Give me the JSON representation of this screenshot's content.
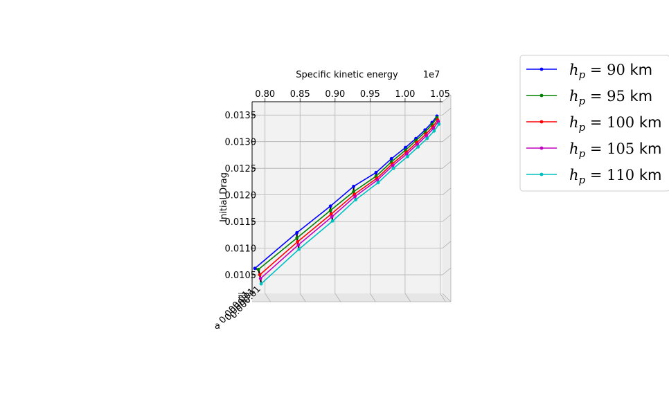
{
  "chart_data": {
    "type": "line",
    "projection": "3d",
    "xlabel": "Specific kinetic energy",
    "x_offset_label": "1e7",
    "x_ticks": [
      "0.80",
      "0.85",
      "0.90",
      "0.95",
      "1.00",
      "1.05"
    ],
    "x_tick_values": [
      0.8,
      0.85,
      0.9,
      0.95,
      1.0,
      1.05
    ],
    "xlim": [
      0.7815,
      1.0535
    ],
    "ylabel": "Initial Drag",
    "y_ticks": [
      "0.0105",
      "0.0110",
      "0.0115",
      "0.0120",
      "0.0125",
      "0.0130",
      "0.0135"
    ],
    "y_tick_values": [
      0.0105,
      0.011,
      0.0115,
      0.012,
      0.0125,
      0.013,
      0.0135
    ],
    "ylim": [
      0.01015,
      0.01375
    ],
    "zlabel": "a",
    "z_tick_label_text": "0.000.01",
    "grid": true,
    "legend_position": "outside-right",
    "series": [
      {
        "name": "h_p = 90 km",
        "unit": "km",
        "hp": "90",
        "color": "#0000ff",
        "x": [
          0.7855,
          0.8455,
          0.8935,
          0.9265,
          0.9585,
          0.9805,
          1.0005,
          1.0155,
          1.0285,
          1.0385,
          1.0455
        ],
        "y": [
          0.01062,
          0.01129,
          0.01179,
          0.01216,
          0.01242,
          0.01268,
          0.01289,
          0.01306,
          0.01322,
          0.01336,
          0.01348
        ]
      },
      {
        "name": "h_p = 95 km",
        "unit": "km",
        "hp": "95",
        "color": "#008000",
        "x": [
          0.7905,
          0.8455,
          0.8935,
          0.9265,
          0.9585,
          0.9805,
          1.0005,
          1.0155,
          1.0285,
          1.0385,
          1.0455
        ],
        "y": [
          0.0106,
          0.01119,
          0.01171,
          0.01206,
          0.01235,
          0.01262,
          0.01284,
          0.01302,
          0.01318,
          0.01332,
          0.01345
        ]
      },
      {
        "name": "h_p = 100 km",
        "unit": "km",
        "hp": "100",
        "color": "#ff0000",
        "x": [
          0.7925,
          0.8465,
          0.8945,
          0.9275,
          0.9595,
          0.9815,
          1.0015,
          1.0165,
          1.0295,
          1.0395,
          1.0465
        ],
        "y": [
          0.0105,
          0.01112,
          0.01164,
          0.01201,
          0.01231,
          0.01258,
          0.0128,
          0.01298,
          0.01314,
          0.01328,
          0.01341
        ]
      },
      {
        "name": "h_p = 105 km",
        "unit": "km",
        "hp": "105",
        "color": "#bf00bf",
        "x": [
          0.7935,
          0.8475,
          0.8955,
          0.9285,
          0.9605,
          0.9825,
          1.0025,
          1.0175,
          1.0305,
          1.0405,
          1.0475
        ],
        "y": [
          0.01043,
          0.01106,
          0.01159,
          0.01197,
          0.01228,
          0.01255,
          0.01277,
          0.01295,
          0.01311,
          0.01325,
          0.01338
        ]
      },
      {
        "name": "h_p = 110 km",
        "unit": "km",
        "hp": "110",
        "color": "#00bfbf",
        "x": [
          0.7945,
          0.8485,
          0.8965,
          0.9295,
          0.9615,
          0.9835,
          1.0035,
          1.0185,
          1.0315,
          1.0415,
          1.0485
        ],
        "y": [
          0.01033,
          0.01098,
          0.01151,
          0.01191,
          0.01223,
          0.0125,
          0.01272,
          0.0129,
          0.01306,
          0.0132,
          0.01333
        ]
      }
    ],
    "connector_color": "#000000"
  }
}
